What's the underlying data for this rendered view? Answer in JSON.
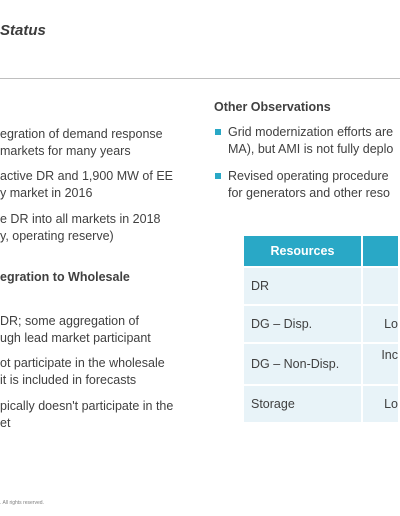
{
  "slide_title": "Status",
  "left": {
    "bullet1": [
      "egration of demand response",
      "markets for many years"
    ],
    "bullet2": [
      "active DR and 1,900 MW of EE",
      "y market in 2016"
    ],
    "bullet3": [
      "e DR into all markets in 2018",
      "y, operating reserve)"
    ],
    "section_heading": "egration to Wholesale",
    "item1": [
      "DR; some aggregation of",
      "ugh lead market participant"
    ],
    "item2": [
      "ot participate in the wholesale",
      "it is included in forecasts"
    ],
    "item3": [
      "pically doesn't participate in the",
      "et"
    ]
  },
  "right": {
    "heading": "Other Observations",
    "bullets": [
      [
        "Grid modernization efforts are",
        "MA), but AMI is not fully deplo"
      ],
      [
        "Revised operating procedure",
        "for generators and other reso"
      ]
    ]
  },
  "table": {
    "headers": [
      "Resources",
      ""
    ],
    "rows": [
      [
        "DR",
        ""
      ],
      [
        "DG – Disp.",
        "Lo"
      ],
      [
        "DG – Non-Disp.",
        "Inc"
      ],
      [
        "Storage",
        "Lo"
      ]
    ]
  },
  "footer": ". All rights reserved.",
  "colors": {
    "accent": "#29a8c6",
    "row_fill": "#e8f3f8"
  }
}
